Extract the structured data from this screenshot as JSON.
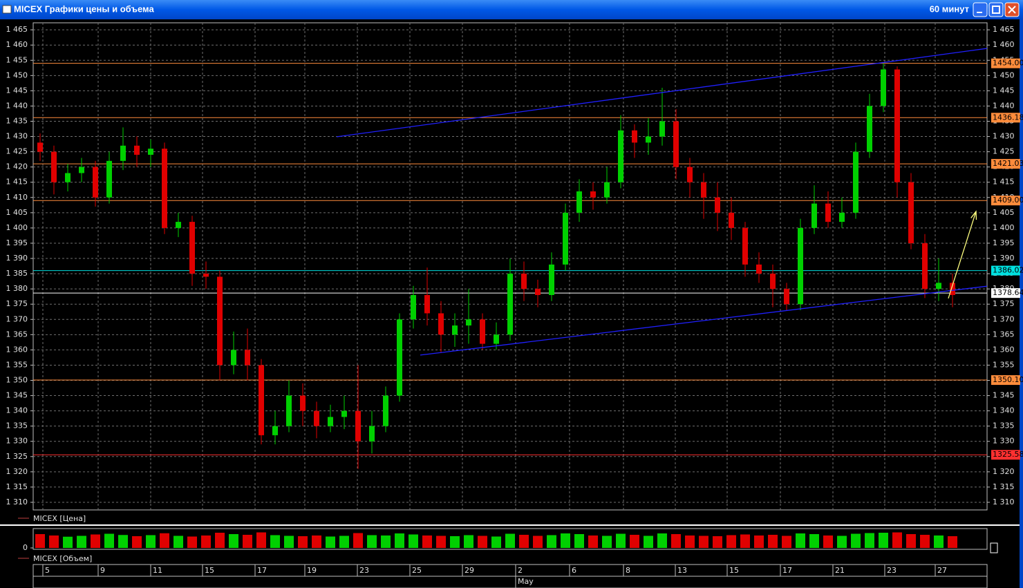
{
  "window": {
    "title": "MICEX Графики цены и объема",
    "interval": "60 минут"
  },
  "chart_data": [
    {
      "type": "candlestick",
      "legend": "MICEX [Цена]",
      "up_color": "#00d000",
      "down_color": "#e00000",
      "grid": true,
      "xlim": [
        0,
        69
      ],
      "ylim": [
        1307.5,
        1467.3
      ],
      "yticks": [
        {
          "value": 1310,
          "label": "1 310"
        },
        {
          "value": 1315,
          "label": "1 315"
        },
        {
          "value": 1320,
          "label": "1 320"
        },
        {
          "value": 1325,
          "label": "1 325"
        },
        {
          "value": 1330,
          "label": "1 330"
        },
        {
          "value": 1335,
          "label": "1 335"
        },
        {
          "value": 1340,
          "label": "1 340"
        },
        {
          "value": 1345,
          "label": "1 345"
        },
        {
          "value": 1350,
          "label": "1 350"
        },
        {
          "value": 1355,
          "label": "1 355"
        },
        {
          "value": 1360,
          "label": "1 360"
        },
        {
          "value": 1365,
          "label": "1 365"
        },
        {
          "value": 1370,
          "label": "1 370"
        },
        {
          "value": 1375,
          "label": "1 375"
        },
        {
          "value": 1380,
          "label": "1 380"
        },
        {
          "value": 1385,
          "label": "1 385"
        },
        {
          "value": 1390,
          "label": "1 390"
        },
        {
          "value": 1395,
          "label": "1 395"
        },
        {
          "value": 1400,
          "label": "1 400"
        },
        {
          "value": 1405,
          "label": "1 405"
        },
        {
          "value": 1410,
          "label": "1 410"
        },
        {
          "value": 1415,
          "label": "1 415"
        },
        {
          "value": 1420,
          "label": "1 420"
        },
        {
          "value": 1425,
          "label": "1 425"
        },
        {
          "value": 1430,
          "label": "1 430"
        },
        {
          "value": 1435,
          "label": "1 435"
        },
        {
          "value": 1440,
          "label": "1 440"
        },
        {
          "value": 1445,
          "label": "1 445"
        },
        {
          "value": 1450,
          "label": "1 450"
        },
        {
          "value": 1455,
          "label": "1 455"
        },
        {
          "value": 1460,
          "label": "1 460"
        },
        {
          "value": 1465,
          "label": "1 465"
        }
      ],
      "xticks": [
        {
          "value": 0.7,
          "label": "5"
        },
        {
          "value": 4.7,
          "label": "9"
        },
        {
          "value": 8.5,
          "label": "11"
        },
        {
          "value": 12.25,
          "label": "15"
        },
        {
          "value": 16.05,
          "label": "17"
        },
        {
          "value": 19.65,
          "label": "19"
        },
        {
          "value": 23.45,
          "label": "23"
        },
        {
          "value": 27.25,
          "label": "25"
        },
        {
          "value": 31.05,
          "label": "29"
        },
        {
          "value": 34.9,
          "label": "2"
        },
        {
          "value": 38.8,
          "label": "6"
        },
        {
          "value": 42.7,
          "label": "8"
        },
        {
          "value": 46.45,
          "label": "13"
        },
        {
          "value": 50.2,
          "label": "15"
        },
        {
          "value": 54.05,
          "label": "17"
        },
        {
          "value": 57.85,
          "label": "21"
        },
        {
          "value": 61.6,
          "label": "23"
        },
        {
          "value": 65.25,
          "label": "27"
        }
      ],
      "month_labels": [
        {
          "value": 34.9,
          "label": "May"
        }
      ],
      "open": [
        1428,
        1425,
        1415,
        1418,
        1420,
        1410,
        1422,
        1427,
        1424,
        1426,
        1400,
        1402,
        1385,
        1384,
        1355,
        1360,
        1355,
        1332,
        1335,
        1345,
        1340,
        1335,
        1338,
        1340,
        1330,
        1335,
        1345,
        1370,
        1378,
        1372,
        1365,
        1368,
        1370,
        1362,
        1365,
        1385,
        1380,
        1378,
        1388,
        1405,
        1412,
        1410,
        1415,
        1432,
        1428,
        1430,
        1435,
        1420,
        1415,
        1410,
        1405,
        1400,
        1388,
        1385,
        1380,
        1375,
        1400,
        1408,
        1402,
        1405,
        1425,
        1440,
        1452,
        1415,
        1395,
        1380,
        1382
      ],
      "high": [
        1431,
        1427,
        1421,
        1423,
        1422,
        1425,
        1433,
        1430,
        1429,
        1428,
        1405,
        1404,
        1389,
        1386,
        1366,
        1367,
        1357,
        1340,
        1350,
        1349,
        1343,
        1342,
        1345,
        1355,
        1340,
        1348,
        1372,
        1381,
        1387,
        1376,
        1372,
        1380,
        1372,
        1369,
        1390,
        1389,
        1383,
        1392,
        1408,
        1416,
        1415,
        1420,
        1437,
        1434,
        1436,
        1446,
        1439,
        1423,
        1418,
        1415,
        1410,
        1402,
        1392,
        1388,
        1382,
        1403,
        1414,
        1412,
        1410,
        1428,
        1444,
        1454,
        1453,
        1418,
        1398,
        1390,
        1385
      ],
      "low": [
        1422,
        1411,
        1412,
        1415,
        1407,
        1408,
        1419,
        1420,
        1420,
        1398,
        1397,
        1381,
        1380,
        1350,
        1352,
        1350,
        1329,
        1329,
        1333,
        1335,
        1331,
        1333,
        1334,
        1321,
        1326,
        1333,
        1343,
        1367,
        1368,
        1359,
        1361,
        1362,
        1360,
        1360,
        1363,
        1376,
        1374,
        1376,
        1386,
        1402,
        1406,
        1408,
        1413,
        1423,
        1424,
        1427,
        1416,
        1410,
        1403,
        1399,
        1396,
        1384,
        1382,
        1374,
        1373,
        1373,
        1398,
        1400,
        1400,
        1403,
        1423,
        1438,
        1410,
        1393,
        1377,
        1376,
        1374
      ],
      "close": [
        1425,
        1415,
        1418,
        1420,
        1410,
        1422,
        1427,
        1424,
        1426,
        1400,
        1402,
        1385,
        1384,
        1355,
        1360,
        1355,
        1332,
        1335,
        1345,
        1340,
        1335,
        1338,
        1340,
        1330,
        1335,
        1345,
        1370,
        1378,
        1372,
        1365,
        1368,
        1370,
        1362,
        1365,
        1385,
        1380,
        1378,
        1388,
        1405,
        1412,
        1410,
        1415,
        1432,
        1428,
        1430,
        1435,
        1420,
        1415,
        1410,
        1405,
        1400,
        1388,
        1385,
        1380,
        1375,
        1400,
        1408,
        1402,
        1405,
        1425,
        1440,
        1452,
        1415,
        1395,
        1380,
        1382,
        1378
      ],
      "levels": [
        {
          "value": 1454,
          "label": "1454.00",
          "color": "#ff8c3c"
        },
        {
          "value": 1436.18,
          "label": "1436.18",
          "color": "#ff8c3c"
        },
        {
          "value": 1421.03,
          "label": "1421.03",
          "color": "#ff8c3c"
        },
        {
          "value": 1409,
          "label": "1409.00",
          "color": "#ff8c3c"
        },
        {
          "value": 1386.02,
          "label": "1386.02",
          "color": "#00e0e0"
        },
        {
          "value": 1378.64,
          "label": "1378.64",
          "color": "#ffffff"
        },
        {
          "value": 1350.1,
          "label": "1350.10",
          "color": "#ff8c3c"
        },
        {
          "value": 1325.58,
          "label": "1325.58",
          "color": "#ff3030"
        }
      ],
      "trendlines": [
        {
          "x": [
            21.95,
            69
          ],
          "y": [
            1429.9,
            1458.9
          ],
          "color": "#2020ff"
        },
        {
          "x": [
            28,
            69
          ],
          "y": [
            1358.3,
            1380.9
          ],
          "color": "#2020ff"
        }
      ],
      "arrow": {
        "x": [
          66.2,
          68.2
        ],
        "y": [
          1376.9,
          1405.4
        ],
        "color": "#ffff80"
      }
    },
    {
      "type": "bar",
      "legend": "MICEX [Объем]",
      "ylim": [
        0,
        100
      ],
      "yticks": [
        0
      ],
      "values": [
        80,
        72,
        65,
        70,
        78,
        82,
        75,
        68,
        74,
        85,
        70,
        66,
        72,
        88,
        80,
        76,
        90,
        74,
        70,
        68,
        72,
        66,
        70,
        86,
        74,
        72,
        84,
        78,
        72,
        70,
        68,
        74,
        70,
        66,
        82,
        76,
        70,
        74,
        84,
        80,
        72,
        70,
        82,
        76,
        70,
        84,
        80,
        72,
        70,
        68,
        74,
        78,
        72,
        76,
        70,
        84,
        80,
        72,
        70,
        82,
        86,
        88,
        90,
        80,
        76,
        72,
        68
      ]
    }
  ]
}
